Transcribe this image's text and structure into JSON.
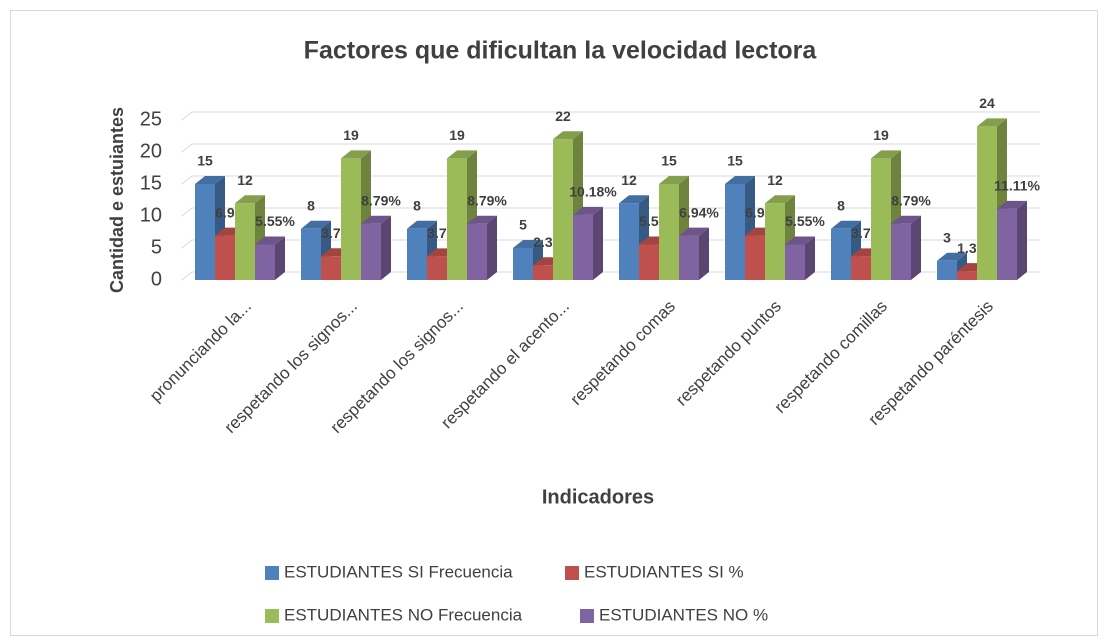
{
  "chart_data": {
    "type": "bar3d",
    "title": "Factores que dificultan la velocidad lectora",
    "y_label": "Cantidad e estuiantes",
    "x_label": "Indicadores",
    "categories": [
      "pronunciando la...",
      "respetando los signos...",
      "respetando los signos...",
      "respetando el acento...",
      "respetando comas",
      "respetando puntos",
      "respetando comillas",
      "respetando paréntesis"
    ],
    "series": [
      {
        "name": "ESTUDIANTES SI Frecuencia",
        "color": "#4f81bd",
        "values": [
          15,
          8,
          8,
          5,
          12,
          15,
          8,
          3
        ]
      },
      {
        "name": "ESTUDIANTES SI %",
        "color": "#c0504d",
        "values": [
          6.94,
          3.71,
          3.7,
          2.31,
          5.55,
          6.94,
          3.7,
          1.39
        ],
        "value_labels": [
          "6.94%",
          "3.71%",
          "3.70%",
          "2.31%",
          "5.55%",
          "6.94%",
          "3.70%",
          "1.39%"
        ]
      },
      {
        "name": "ESTUDIANTES NO Frecuencia",
        "color": "#9bbb59",
        "values": [
          12,
          19,
          19,
          22,
          15,
          12,
          19,
          24
        ]
      },
      {
        "name": "ESTUDIANTES NO %",
        "color": "#8064a2",
        "values": [
          5.55,
          8.79,
          8.79,
          10.18,
          6.94,
          5.55,
          8.79,
          11.11
        ],
        "value_labels": [
          "5.55%",
          "8.79%",
          "8.79%",
          "10.18%",
          "6.94%",
          "5.55%",
          "8.79%",
          "11.11%"
        ]
      }
    ],
    "ylim": [
      0,
      25
    ],
    "yticks": [
      0,
      5,
      10,
      15,
      20,
      25
    ],
    "grid": true,
    "legend": "bottom"
  }
}
